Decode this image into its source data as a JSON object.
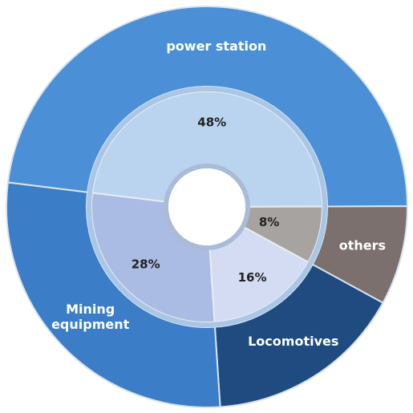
{
  "chart_data": {
    "type": "donut",
    "categories": [
      "power station",
      "others",
      "Locomotives",
      "Mining equipment"
    ],
    "values": [
      48,
      8,
      16,
      28
    ],
    "value_labels": [
      "48%",
      "8%",
      "16%",
      "28%"
    ],
    "colors": [
      "#4b90d6",
      "#7b706d",
      "#1f4b80",
      "#3b7dc6"
    ],
    "inner_colors": [
      "#bad4ef",
      "#a7a3a0",
      "#d4dcf3",
      "#aabbe4"
    ]
  }
}
